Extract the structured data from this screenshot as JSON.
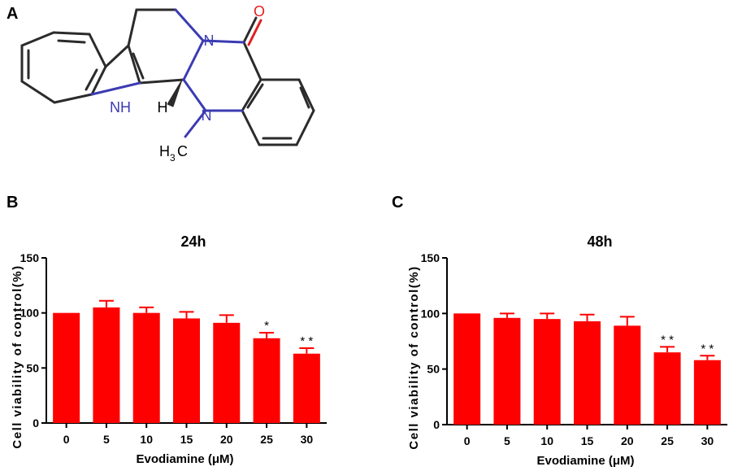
{
  "panel_letters": {
    "a": "A",
    "b": "B",
    "c": "C"
  },
  "molecule": {
    "name": "Evodiamine",
    "atom_labels": {
      "oxygen": "O",
      "amide_n": "N",
      "indole_nh": "NH",
      "hydrogen": "H",
      "methyl_n": "N",
      "methyl": "H",
      "methyl_sub": "3",
      "methyl_c": "C"
    },
    "colors": {
      "bond": "#2b2b2b",
      "nitrogen": "#3b3bb3",
      "oxygen": "#e02020"
    }
  },
  "chart_data": [
    {
      "type": "bar",
      "title": "24h",
      "xlabel": "Evodiamine (μM)",
      "ylabel": "Cell  viability of control(%)",
      "categories": [
        "0",
        "5",
        "10",
        "15",
        "20",
        "25",
        "30"
      ],
      "values": [
        100,
        105,
        100,
        95,
        91,
        77,
        63
      ],
      "errors": [
        0,
        6,
        5,
        6,
        7,
        5,
        5
      ],
      "significance": [
        "",
        "",
        "",
        "",
        "",
        "*",
        "* *"
      ],
      "ylim": [
        0,
        150
      ],
      "yticks": [
        "0",
        "50",
        "100",
        "150"
      ],
      "bar_color": "#ff0000",
      "grid": false
    },
    {
      "type": "bar",
      "title": "48h",
      "xlabel": "Evodiamine (μM)",
      "ylabel": "Cell  viability of control(%)",
      "categories": [
        "0",
        "5",
        "10",
        "15",
        "20",
        "25",
        "30"
      ],
      "values": [
        100,
        96,
        95,
        93,
        89,
        65,
        58
      ],
      "errors": [
        0,
        4,
        5,
        6,
        8,
        5,
        4
      ],
      "significance": [
        "",
        "",
        "",
        "",
        "",
        "* *",
        "* *"
      ],
      "ylim": [
        0,
        150
      ],
      "yticks": [
        "0",
        "50",
        "100",
        "150"
      ],
      "bar_color": "#ff0000",
      "grid": false
    }
  ]
}
